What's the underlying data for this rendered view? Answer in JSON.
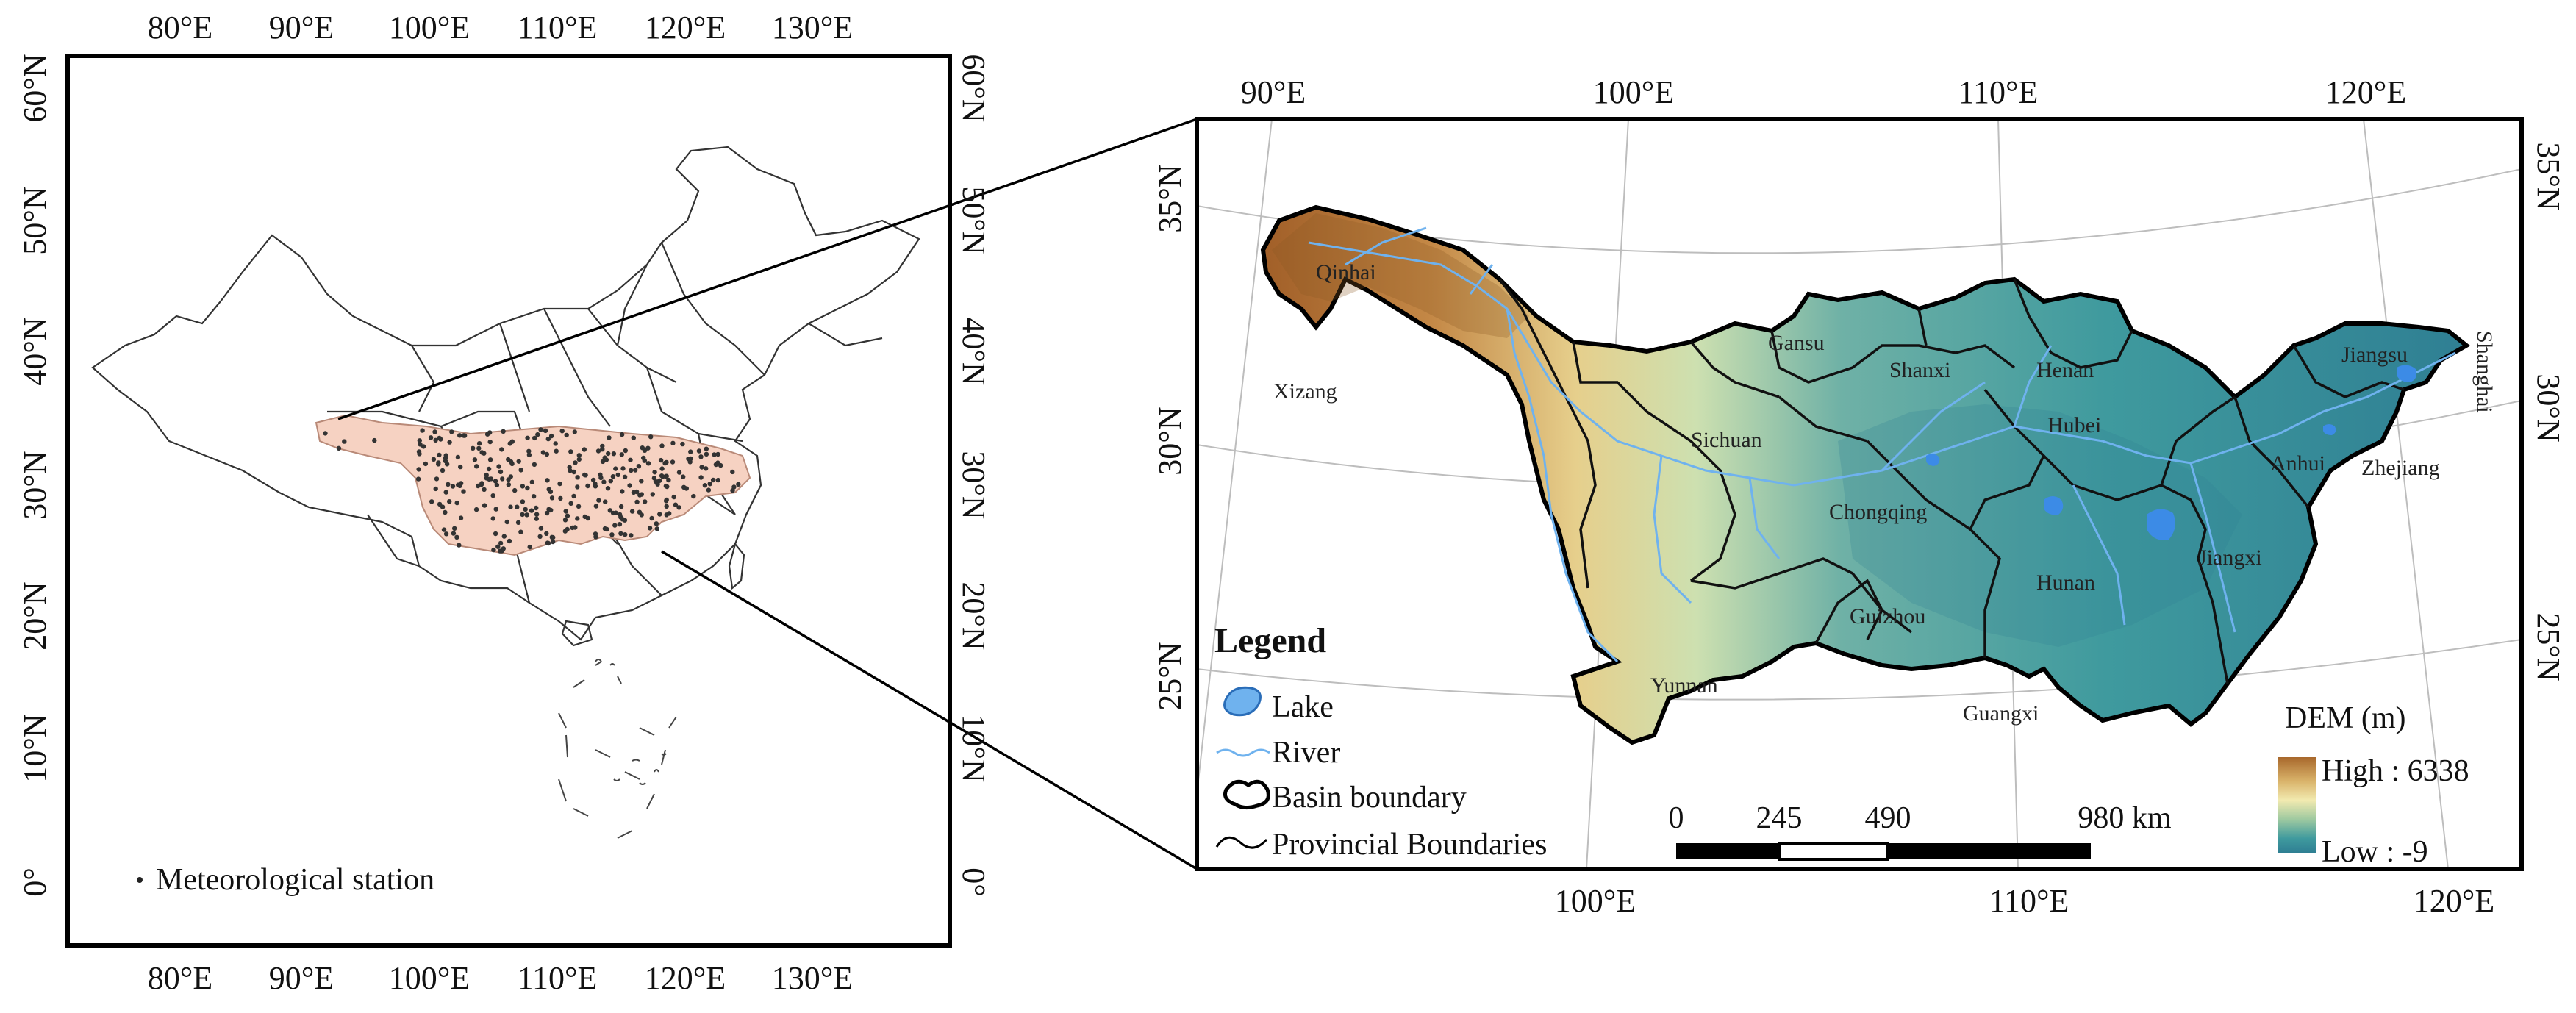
{
  "left_map": {
    "top_ticks": [
      "80°E",
      "90°E",
      "100°E",
      "110°E",
      "120°E",
      "130°E"
    ],
    "bottom_ticks": [
      "80°E",
      "90°E",
      "100°E",
      "110°E",
      "120°E",
      "130°E"
    ],
    "lat_ticks": [
      "60°N",
      "50°N",
      "40°N",
      "30°N",
      "20°N",
      "10°N",
      "0°"
    ],
    "legend_label": "Meteorological station"
  },
  "right_map": {
    "top_ticks": [
      "90°E",
      "100°E",
      "110°E",
      "120°E"
    ],
    "bottom_ticks": [
      "100°E",
      "110°E",
      "120°E"
    ],
    "left_lat_ticks": [
      "35°N",
      "30°N",
      "25°N"
    ],
    "right_lat_ticks": [
      "35°N",
      "30°N",
      "25°N"
    ],
    "provinces": {
      "qinhai": "Qinhai",
      "xizang": "Xizang",
      "gansu": "Gansu",
      "shanxi": "Shanxi",
      "henan": "Henan",
      "jiangsu": "Jiangsu",
      "shanghai": "Shanghai",
      "sichuan": "Sichuan",
      "hubei": "Hubei",
      "anhui": "Anhui",
      "zhejiang": "Zhejiang",
      "chongqing": "Chongqing",
      "hunan": "Hunan",
      "jiangxi": "Jiangxi",
      "guizhou": "Guizhou",
      "yunnan": "Yunnan",
      "guangxi": "Guangxi"
    },
    "legend": {
      "title": "Legend",
      "lake": "Lake",
      "river": "River",
      "basin": "Basin boundary",
      "provincial": "Provincial Boundaries"
    },
    "scale_bar": {
      "labels": [
        "0",
        "245",
        "490",
        "980 km"
      ]
    },
    "dem": {
      "title": "DEM (m)",
      "high": "High : 6338",
      "low": "Low : -9",
      "colors": [
        "#a8682c",
        "#d9b36a",
        "#f2eab0",
        "#9ec9a0",
        "#3f9a9e",
        "#2f7f93"
      ]
    }
  },
  "colors": {
    "basin_fill_left": "#f6d2c2",
    "lake": "#3c8be6",
    "river": "#7fb8ee"
  }
}
